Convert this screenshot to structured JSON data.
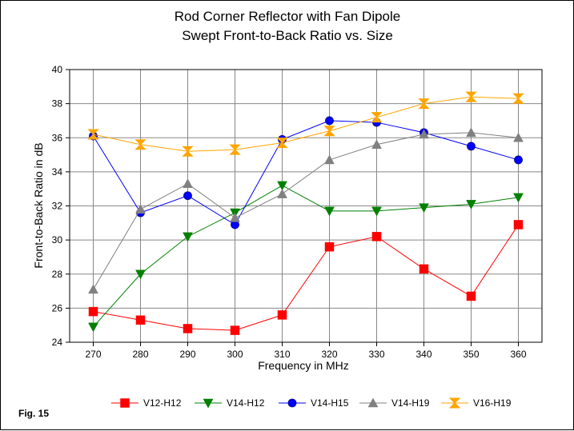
{
  "colors": {
    "background": "#ffffff",
    "plot_background": "#ffffff",
    "grid": "#888888",
    "series": [
      "#ff0000",
      "#008000",
      "#0000ff",
      "#808080",
      "#ffa500"
    ]
  },
  "figure_label": "Fig. 15",
  "chart_data": {
    "type": "line",
    "title": "Rod Corner Reflector with Fan Dipole",
    "subtitle": "Swept Front-to-Back Ratio vs. Size",
    "xlabel": "Frequency in MHz",
    "ylabel": "Front-to-Back Ratio in dB",
    "x": [
      270,
      280,
      290,
      300,
      310,
      320,
      330,
      340,
      350,
      360
    ],
    "xlim": [
      265,
      365
    ],
    "ylim": [
      24,
      40
    ],
    "yticks": [
      24,
      26,
      28,
      30,
      32,
      34,
      36,
      38,
      40
    ],
    "grid": true,
    "legend_position": "bottom",
    "series": [
      {
        "name": "V12-H12",
        "marker": "square",
        "color": "#ff0000",
        "values": [
          25.8,
          25.3,
          24.8,
          24.7,
          25.6,
          29.6,
          30.2,
          28.3,
          26.7,
          30.9
        ]
      },
      {
        "name": "V14-H12",
        "marker": "triangle-down",
        "color": "#008000",
        "values": [
          24.9,
          28.0,
          30.2,
          31.6,
          33.2,
          31.7,
          31.7,
          31.9,
          32.1,
          32.5
        ]
      },
      {
        "name": "V14-H15",
        "marker": "circle",
        "color": "#0000ff",
        "values": [
          36.1,
          31.6,
          32.6,
          30.9,
          35.9,
          37.0,
          36.9,
          36.3,
          35.5,
          34.7
        ]
      },
      {
        "name": "V14-H19",
        "marker": "triangle-up",
        "color": "#808080",
        "values": [
          27.1,
          31.8,
          33.3,
          31.3,
          32.7,
          34.7,
          35.6,
          36.2,
          36.3,
          36.0
        ]
      },
      {
        "name": "V16-H19",
        "marker": "hourglass",
        "color": "#ffa500",
        "values": [
          36.2,
          35.6,
          35.2,
          35.3,
          35.7,
          36.4,
          37.2,
          38.0,
          38.4,
          38.3
        ]
      }
    ]
  }
}
